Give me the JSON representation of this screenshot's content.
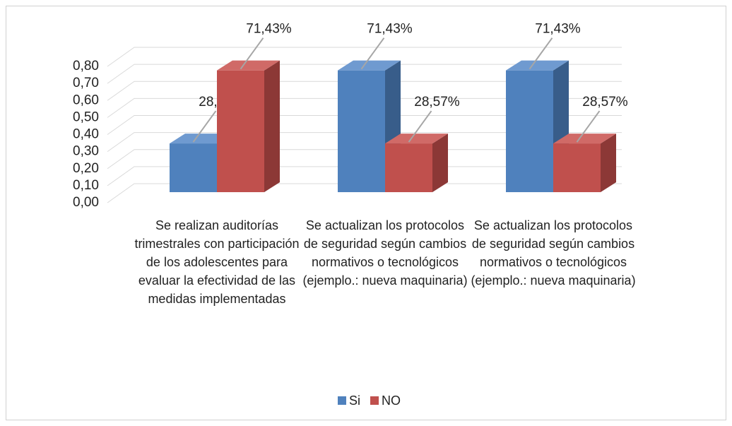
{
  "chart_data": {
    "type": "bar3d",
    "categories": [
      "Se realizan auditorías trimestrales con participación de los adolescentes para evaluar la efectividad de las medidas implementadas",
      "Se actualizan los protocolos de seguridad según cambios normativos o tecnológicos (ejemplo.: nueva maquinaria)",
      "Se actualizan los protocolos de seguridad según cambios normativos o tecnológicos (ejemplo.: nueva maquinaria)"
    ],
    "series": [
      {
        "name": "Si",
        "color": "#4f81bd",
        "side": "#385d8a",
        "top": "#6f9ad0",
        "values": [
          0.2857,
          0.7143,
          0.7143
        ],
        "value_labels": [
          "28,57%",
          "71,43%",
          "71,43%"
        ]
      },
      {
        "name": "NO",
        "color": "#c0504d",
        "side": "#8c3836",
        "top": "#d06a67",
        "values": [
          0.7143,
          0.2857,
          0.2857
        ],
        "value_labels": [
          "71,43%",
          "28,57%",
          "28,57%"
        ]
      }
    ],
    "ylim": [
      0,
      0.8
    ],
    "yticks": [
      {
        "value": 0,
        "label": "0,00"
      },
      {
        "value": 0.1,
        "label": "0,10"
      },
      {
        "value": 0.2,
        "label": "0,20"
      },
      {
        "value": 0.3,
        "label": "0,30"
      },
      {
        "value": 0.4,
        "label": "0,40"
      },
      {
        "value": 0.5,
        "label": "0,50"
      },
      {
        "value": 0.6,
        "label": "0,60"
      },
      {
        "value": 0.7,
        "label": "0,70"
      },
      {
        "value": 0.8,
        "label": "0,80"
      }
    ],
    "grid": true,
    "legend": "bottom"
  }
}
